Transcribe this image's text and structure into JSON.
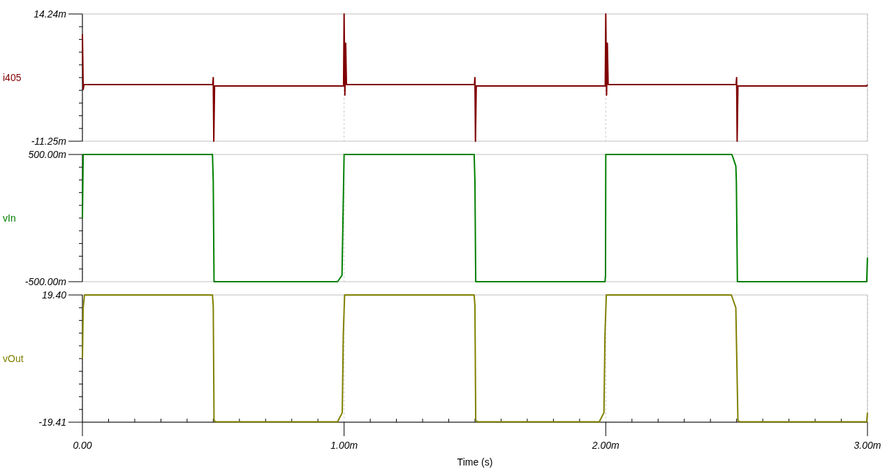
{
  "chart_data": [
    {
      "type": "line",
      "ylabel": "i405",
      "grid": "x",
      "tick_labels": "y",
      "xlim": [
        0,
        3
      ],
      "xticks": [
        0,
        1,
        2,
        3
      ],
      "ylim": [
        -11.25,
        14.24
      ],
      "yticks": [
        {
          "value": -11.25,
          "label": "-11.25m"
        },
        {
          "value": -8.701,
          "label": null
        },
        {
          "value": -6.152,
          "label": null
        },
        {
          "value": -3.603,
          "label": null
        },
        {
          "value": -1.054,
          "label": null
        },
        {
          "value": 1.495,
          "label": null
        },
        {
          "value": 4.044,
          "label": null
        },
        {
          "value": 6.593,
          "label": null
        },
        {
          "value": 9.142,
          "label": null
        },
        {
          "value": 11.691,
          "label": null
        },
        {
          "value": 14.24,
          "label": "14.24m"
        }
      ],
      "series": [
        {
          "color": "#800000",
          "x": [
            0,
            0.003,
            0.006,
            0.498,
            0.5,
            0.502,
            0.505,
            0.998,
            1,
            1.003,
            1.006,
            1.009,
            1.498,
            1.5,
            1.502,
            1.505,
            1.998,
            2,
            2.003,
            2.006,
            2.009,
            2.498,
            2.5,
            2.502,
            2.505,
            2.997,
            3
          ],
          "values": [
            10.2,
            -0.9,
            0.1,
            0.1,
            1.5,
            -11.25,
            -0.2,
            -0.2,
            14.24,
            -2,
            8.4,
            0.1,
            0.1,
            1.5,
            -11.25,
            -0.2,
            -0.2,
            14.24,
            -2,
            8.4,
            0.1,
            0.1,
            1.5,
            -11.25,
            -0.2,
            -0.2,
            0.1
          ]
        }
      ]
    },
    {
      "type": "line",
      "ylabel": "vIn",
      "grid": "x",
      "tick_labels": "y",
      "xlim": [
        0,
        3
      ],
      "xticks": [
        0,
        1,
        2,
        3
      ],
      "ylim": [
        -500,
        500
      ],
      "yticks": [
        {
          "value": -500,
          "label": "-500.00m"
        },
        {
          "value": -400,
          "label": null
        },
        {
          "value": -300,
          "label": null
        },
        {
          "value": -200,
          "label": null
        },
        {
          "value": -100,
          "label": null
        },
        {
          "value": 0,
          "label": null
        },
        {
          "value": 100,
          "label": null
        },
        {
          "value": 200,
          "label": null
        },
        {
          "value": 300,
          "label": null
        },
        {
          "value": 400,
          "label": null
        },
        {
          "value": 500,
          "label": "500.00m"
        }
      ],
      "series": [
        {
          "color": "#008000",
          "x": [
            0,
            0.003,
            0.497,
            0.5,
            0.503,
            0.975,
            0.992,
            1,
            1.497,
            1.5,
            1.503,
            1.997,
            1.999,
            2,
            2.482,
            2.497,
            2.499,
            2.503,
            2.997,
            3
          ],
          "values": [
            0,
            500,
            500,
            290,
            -500,
            -500,
            -450,
            500,
            500,
            290,
            -500,
            -500,
            -450,
            500,
            500,
            410,
            290,
            -500,
            -500,
            -310
          ]
        }
      ]
    },
    {
      "type": "line",
      "ylabel": "vOut",
      "xlabel": "Time (s)",
      "grid": "x",
      "xlim": [
        0,
        3
      ],
      "xticks": [
        {
          "value": 0,
          "label": "0.00"
        },
        {
          "value": 0.1,
          "label": null
        },
        {
          "value": 0.2,
          "label": null
        },
        {
          "value": 0.3,
          "label": null
        },
        {
          "value": 0.4,
          "label": null
        },
        {
          "value": 0.5,
          "label": null
        },
        {
          "value": 0.6,
          "label": null
        },
        {
          "value": 0.7,
          "label": null
        },
        {
          "value": 0.8,
          "label": null
        },
        {
          "value": 0.9,
          "label": null
        },
        {
          "value": 1,
          "label": "1.00m"
        },
        {
          "value": 1.1,
          "label": null
        },
        {
          "value": 1.2,
          "label": null
        },
        {
          "value": 1.3,
          "label": null
        },
        {
          "value": 1.4,
          "label": null
        },
        {
          "value": 1.5,
          "label": null
        },
        {
          "value": 1.6,
          "label": null
        },
        {
          "value": 1.7,
          "label": null
        },
        {
          "value": 1.8,
          "label": null
        },
        {
          "value": 1.9,
          "label": null
        },
        {
          "value": 2,
          "label": "2.00m"
        },
        {
          "value": 2.1,
          "label": null
        },
        {
          "value": 2.2,
          "label": null
        },
        {
          "value": 2.3,
          "label": null
        },
        {
          "value": 2.4,
          "label": null
        },
        {
          "value": 2.5,
          "label": null
        },
        {
          "value": 2.6,
          "label": null
        },
        {
          "value": 2.7,
          "label": null
        },
        {
          "value": 2.8,
          "label": null
        },
        {
          "value": 2.9,
          "label": null
        },
        {
          "value": 3,
          "label": "3.00m"
        }
      ],
      "ylim": [
        -19.41,
        19.4
      ],
      "yticks": [
        {
          "value": -19.41,
          "label": "-19.41"
        },
        {
          "value": -15.529,
          "label": null
        },
        {
          "value": -11.648,
          "label": null
        },
        {
          "value": -7.767,
          "label": null
        },
        {
          "value": -3.886,
          "label": null
        },
        {
          "value": -0.005,
          "label": null
        },
        {
          "value": 3.876,
          "label": null
        },
        {
          "value": 7.757,
          "label": null
        },
        {
          "value": 11.638,
          "label": null
        },
        {
          "value": 15.519,
          "label": null
        },
        {
          "value": 19.4,
          "label": "19.40"
        }
      ],
      "series": [
        {
          "color": "#808000",
          "x": [
            0,
            0.003,
            0.008,
            0.497,
            0.5,
            0.503,
            0.512,
            0.975,
            0.993,
            0.997,
            1.002,
            1.497,
            1.5,
            1.503,
            1.512,
            1.975,
            1.993,
            1.997,
            2.002,
            2.48,
            2.497,
            2.505,
            2.512,
            2.997,
            3
          ],
          "values": [
            0,
            15.5,
            19.4,
            19.4,
            16,
            -19,
            -19.3,
            -19.3,
            -16.5,
            7.5,
            19.4,
            19.4,
            16,
            -19,
            -19.3,
            -19.3,
            -16.5,
            7.5,
            19.4,
            19.4,
            15.5,
            -19,
            -19.3,
            -19.3,
            -16.5
          ]
        }
      ]
    }
  ]
}
